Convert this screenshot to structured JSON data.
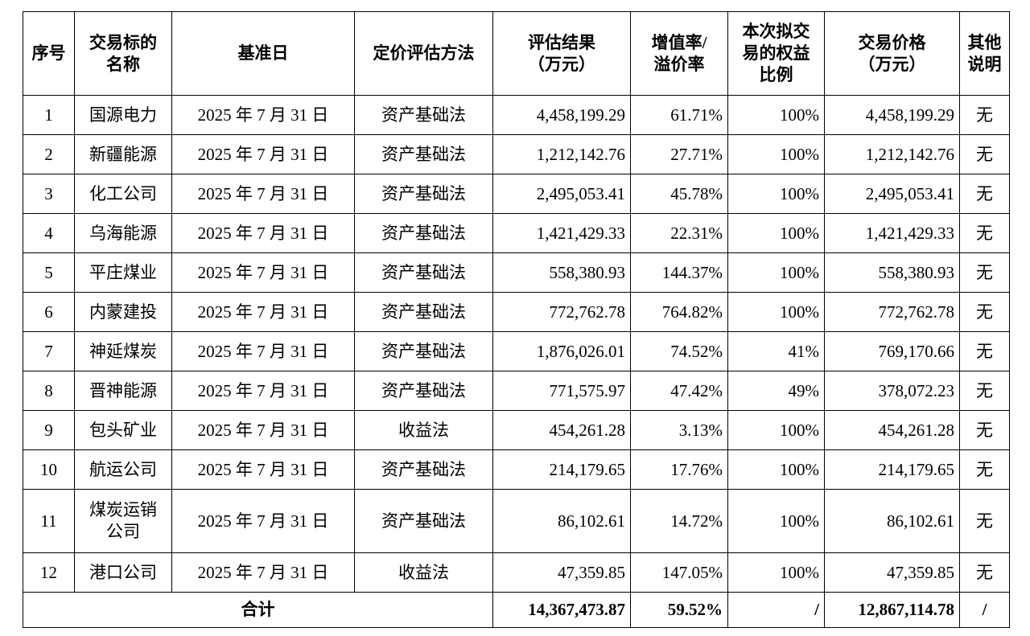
{
  "table": {
    "header": [
      [
        "序号"
      ],
      [
        "交易标的",
        "名称"
      ],
      [
        "基准日"
      ],
      [
        "定价评估方法"
      ],
      [
        "评估结果",
        "（万元）"
      ],
      [
        "增值率/",
        "溢价率"
      ],
      [
        "本次拟交",
        "易的权益",
        "比例"
      ],
      [
        "交易价格",
        "（万元）"
      ],
      [
        "其他",
        "说明"
      ]
    ],
    "rows": [
      [
        "1",
        "国源电力",
        "2025 年 7 月 31 日",
        "资产基础法",
        "4,458,199.29",
        "61.71%",
        "100%",
        "4,458,199.29",
        "无"
      ],
      [
        "2",
        "新疆能源",
        "2025 年 7 月 31 日",
        "资产基础法",
        "1,212,142.76",
        "27.71%",
        "100%",
        "1,212,142.76",
        "无"
      ],
      [
        "3",
        "化工公司",
        "2025 年 7 月 31 日",
        "资产基础法",
        "2,495,053.41",
        "45.78%",
        "100%",
        "2,495,053.41",
        "无"
      ],
      [
        "4",
        "乌海能源",
        "2025 年 7 月 31 日",
        "资产基础法",
        "1,421,429.33",
        "22.31%",
        "100%",
        "1,421,429.33",
        "无"
      ],
      [
        "5",
        "平庄煤业",
        "2025 年 7 月 31 日",
        "资产基础法",
        "558,380.93",
        "144.37%",
        "100%",
        "558,380.93",
        "无"
      ],
      [
        "6",
        "内蒙建投",
        "2025 年 7 月 31 日",
        "资产基础法",
        "772,762.78",
        "764.82%",
        "100%",
        "772,762.78",
        "无"
      ],
      [
        "7",
        "神延煤炭",
        "2025 年 7 月 31 日",
        "资产基础法",
        "1,876,026.01",
        "74.52%",
        "41%",
        "769,170.66",
        "无"
      ],
      [
        "8",
        "晋神能源",
        "2025 年 7 月 31 日",
        "资产基础法",
        "771,575.97",
        "47.42%",
        "49%",
        "378,072.23",
        "无"
      ],
      [
        "9",
        "包头矿业",
        "2025 年 7 月 31 日",
        "收益法",
        "454,261.28",
        "3.13%",
        "100%",
        "454,261.28",
        "无"
      ],
      [
        "10",
        "航运公司",
        "2025 年 7 月 31 日",
        "资产基础法",
        "214,179.65",
        "17.76%",
        "100%",
        "214,179.65",
        "无"
      ],
      [
        "11",
        "煤炭运销公司",
        "2025 年 7 月 31 日",
        "资产基础法",
        "86,102.61",
        "14.72%",
        "100%",
        "86,102.61",
        "无"
      ],
      [
        "12",
        "港口公司",
        "2025 年 7 月 31 日",
        "收益法",
        "47,359.85",
        "147.05%",
        "100%",
        "47,359.85",
        "无"
      ]
    ],
    "total": [
      "合计",
      "14,367,473.87",
      "59.52%",
      "/",
      "12,867,114.78",
      "/"
    ]
  }
}
